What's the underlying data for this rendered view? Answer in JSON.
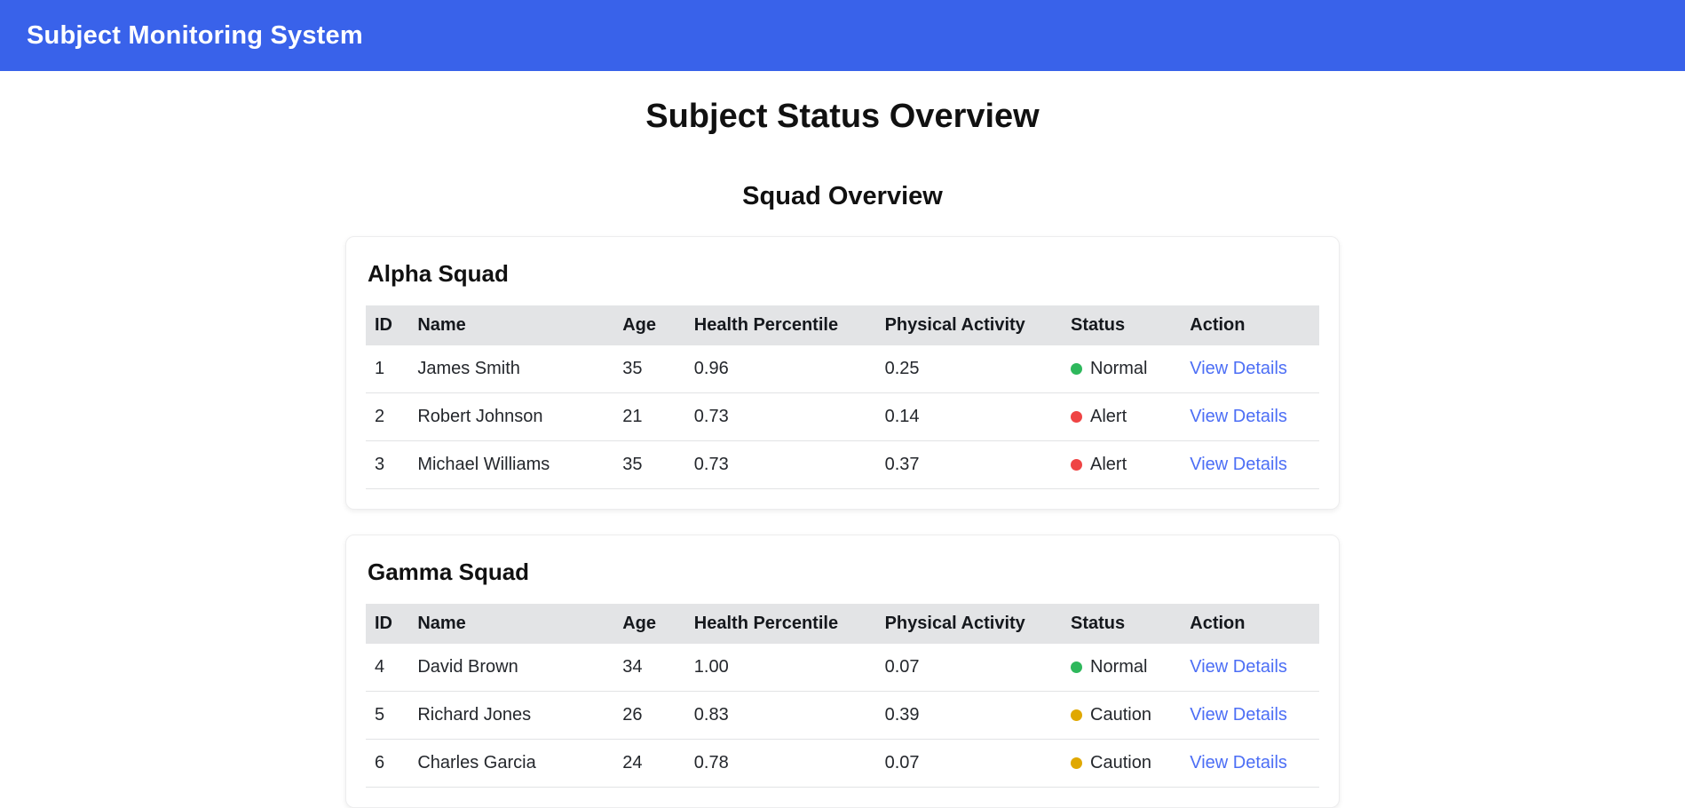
{
  "app": {
    "title": "Subject Monitoring System"
  },
  "page": {
    "title": "Subject Status Overview",
    "section_title": "Squad Overview"
  },
  "table": {
    "headers": [
      "ID",
      "Name",
      "Age",
      "Health Percentile",
      "Physical Activity",
      "Status",
      "Action"
    ]
  },
  "squads": [
    {
      "name": "Alpha Squad",
      "rows": [
        {
          "id": "1",
          "name": "James Smith",
          "age": "35",
          "health_percentile": "0.96",
          "physical_activity": "0.25",
          "status": "Normal",
          "action": "View Details"
        },
        {
          "id": "2",
          "name": "Robert Johnson",
          "age": "21",
          "health_percentile": "0.73",
          "physical_activity": "0.14",
          "status": "Alert",
          "action": "View Details"
        },
        {
          "id": "3",
          "name": "Michael Williams",
          "age": "35",
          "health_percentile": "0.73",
          "physical_activity": "0.37",
          "status": "Alert",
          "action": "View Details"
        }
      ]
    },
    {
      "name": "Gamma Squad",
      "rows": [
        {
          "id": "4",
          "name": "David Brown",
          "age": "34",
          "health_percentile": "1.00",
          "physical_activity": "0.07",
          "status": "Normal",
          "action": "View Details"
        },
        {
          "id": "5",
          "name": "Richard Jones",
          "age": "26",
          "health_percentile": "0.83",
          "physical_activity": "0.39",
          "status": "Caution",
          "action": "View Details"
        },
        {
          "id": "6",
          "name": "Charles Garcia",
          "age": "24",
          "health_percentile": "0.78",
          "physical_activity": "0.07",
          "status": "Caution",
          "action": "View Details"
        }
      ]
    }
  ],
  "status_colors": {
    "Normal": "#2eb85c",
    "Alert": "#ef4444",
    "Caution": "#e0a800"
  },
  "colors": {
    "header_bg": "#3962ea",
    "link": "#4c6ef5",
    "table_header_bg": "#e3e4e6"
  }
}
